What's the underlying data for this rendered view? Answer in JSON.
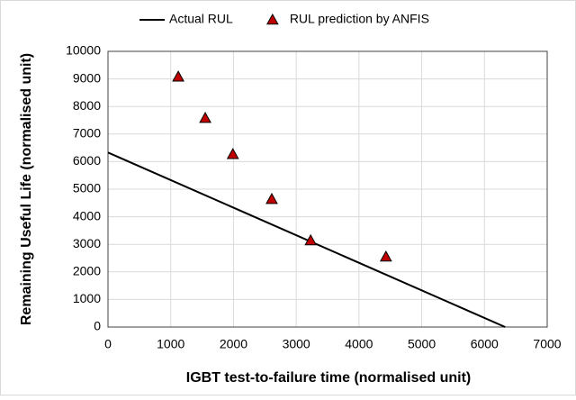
{
  "chart_data": {
    "type": "line",
    "xlabel": "IGBT test-to-failure time (normalised unit)",
    "ylabel": "Remaining Useful Life (normalised unit)",
    "xlim": [
      0,
      7000
    ],
    "xticks": [
      0,
      1000,
      2000,
      3000,
      4000,
      5000,
      6000,
      7000
    ],
    "ylim": [
      0,
      10000
    ],
    "yticks": [
      0,
      1000,
      2000,
      3000,
      4000,
      5000,
      6000,
      7000,
      8000,
      9000,
      10000
    ],
    "grid": true,
    "legend": "top",
    "series": [
      {
        "name": "Actual RUL",
        "type": "line",
        "color": "#000000",
        "x": [
          0,
          6330
        ],
        "values": [
          6330,
          0
        ]
      },
      {
        "name": "RUL prediction by ANFIS",
        "type": "scatter",
        "color": "#c00000",
        "x": [
          1120,
          1550,
          1990,
          2610,
          3230,
          4430
        ],
        "values": [
          9080,
          7580,
          6270,
          4640,
          3140,
          2550
        ]
      }
    ]
  }
}
